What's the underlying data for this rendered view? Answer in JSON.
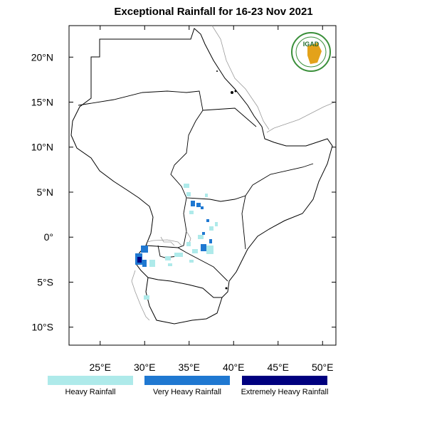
{
  "title": "Exceptional Rainfall for 16-23 Nov 2021",
  "logo": {
    "text": "IGAD",
    "colors": {
      "ring": "#3a8f3a",
      "text": "#1f6a2a",
      "map": "#e3a21a"
    }
  },
  "map": {
    "lon_range": [
      21.5,
      51.5
    ],
    "lat_range": [
      -12,
      23.5
    ],
    "x_ticks": [
      {
        "value": 25,
        "label": "25°E"
      },
      {
        "value": 30,
        "label": "30°E"
      },
      {
        "value": 35,
        "label": "35°E"
      },
      {
        "value": 40,
        "label": "40°E"
      },
      {
        "value": 45,
        "label": "45°E"
      },
      {
        "value": 50,
        "label": "50°E"
      }
    ],
    "y_ticks": [
      {
        "value": 20,
        "label": "20°N"
      },
      {
        "value": 15,
        "label": "15°N"
      },
      {
        "value": 10,
        "label": "10°N"
      },
      {
        "value": 5,
        "label": "5°N"
      },
      {
        "value": 0,
        "label": "0°"
      },
      {
        "value": -5,
        "label": "5°S"
      },
      {
        "value": -10,
        "label": "10°S"
      }
    ]
  },
  "legend": [
    {
      "label": "Heavy Rainfall",
      "color": "#aeeaea"
    },
    {
      "label": "Very Heavy Rainfall",
      "color": "#1f78d1"
    },
    {
      "label": "Extremely Heavy Rainfall",
      "color": "#00007f"
    }
  ]
}
